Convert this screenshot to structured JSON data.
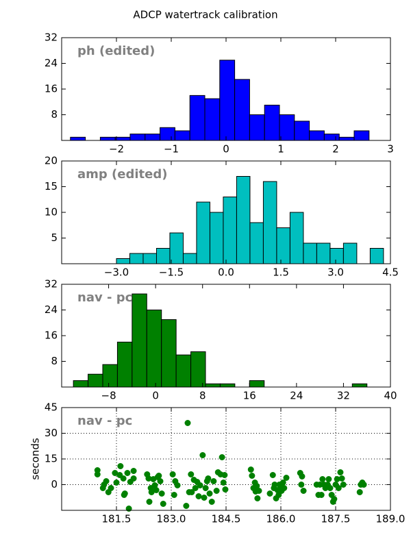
{
  "title": "ADCP watertrack calibration",
  "chart_data": [
    {
      "type": "histogram",
      "label": "ph (edited)",
      "color": "#0000ff",
      "bins": [
        -2.84,
        -2.5675,
        -2.295,
        -2.0225,
        -1.75,
        -1.4775,
        -1.205,
        -0.9325,
        -0.66,
        -0.3875,
        -0.115,
        0.1575,
        0.43,
        0.7025,
        0.975,
        1.2475,
        1.52,
        1.7925,
        2.065,
        2.3375,
        2.61
      ],
      "values": [
        1,
        0,
        1,
        1,
        2,
        2,
        4,
        3,
        14,
        13,
        25,
        19,
        8,
        11,
        8,
        6,
        3,
        2,
        1,
        3
      ],
      "xlim": [
        -3,
        3
      ],
      "xticks": [
        {
          "value": -2,
          "label": "−2"
        },
        {
          "value": -1,
          "label": "−1"
        },
        0,
        1,
        2,
        3
      ],
      "ylim": [
        0,
        32
      ],
      "yticks": [
        8,
        16,
        24,
        32
      ]
    },
    {
      "type": "histogram",
      "label": "amp (edited)",
      "color": "#00bfbf",
      "bins": [
        -3,
        -2.6345,
        -2.269,
        -1.9035,
        -1.538,
        -1.1725,
        -0.807,
        -0.4415,
        -0.076,
        0.2895,
        0.655,
        1.0205,
        1.386,
        1.7515,
        2.117,
        2.4825,
        2.848,
        3.2135,
        3.579,
        3.9445,
        4.31
      ],
      "values": [
        1,
        2,
        2,
        3,
        6,
        2,
        12,
        10,
        13,
        17,
        8,
        16,
        7,
        10,
        4,
        4,
        3,
        4,
        0,
        3
      ],
      "xlim": [
        -4.5,
        4.5
      ],
      "xticks": [
        {
          "value": -3,
          "label": "−3.0"
        },
        {
          "value": -1.5,
          "label": "−1.5"
        },
        {
          "value": 0,
          "label": "0.0"
        },
        1.5,
        {
          "value": 3,
          "label": "3.0"
        },
        4.5
      ],
      "ylim": [
        0,
        20
      ],
      "yticks": [
        5,
        10,
        15,
        20
      ]
    },
    {
      "type": "histogram",
      "label": "nav - pc",
      "color": "#008000",
      "bins": [
        -14,
        -11.5,
        -9,
        -6.5,
        -4,
        -1.5,
        1,
        3.5,
        6,
        8.5,
        11,
        13.5,
        16,
        18.5,
        21,
        23.5,
        26,
        28.5,
        31,
        33.5,
        36
      ],
      "values": [
        2,
        4,
        7,
        14,
        29,
        24,
        21,
        10,
        11,
        1,
        1,
        0,
        2,
        0,
        0,
        0,
        0,
        0,
        0,
        1
      ],
      "xlim": [
        -16,
        40
      ],
      "xticks": [
        {
          "value": -8,
          "label": "−8"
        },
        0,
        8,
        16,
        24,
        32,
        40
      ],
      "ylim": [
        0,
        32
      ],
      "yticks": [
        8,
        16,
        24,
        32
      ]
    },
    {
      "type": "scatter",
      "label": "nav - pc",
      "color": "#008000",
      "ylabel": "seconds",
      "grid": true,
      "x": [
        180.98,
        180.98,
        181.13,
        181.16,
        181.22,
        181.28,
        181.35,
        181.46,
        181.5,
        181.61,
        181.59,
        181.69,
        181.73,
        181.71,
        181.8,
        181.84,
        181.88,
        181.97,
        181.97,
        182.34,
        182.38,
        182.4,
        182.44,
        182.46,
        182.51,
        182.55,
        182.59,
        182.63,
        182.66,
        182.7,
        182.74,
        182.78,
        183.04,
        183.08,
        183.11,
        183.17,
        183.41,
        183.45,
        183.49,
        183.54,
        183.56,
        183.62,
        183.66,
        183.71,
        183.75,
        183.79,
        183.86,
        183.9,
        183.94,
        183.98,
        184.01,
        184.05,
        184.11,
        184.16,
        184.24,
        184.28,
        184.35,
        184.39,
        184.43,
        184.46,
        184.48,
        185.18,
        185.21,
        185.25,
        185.29,
        185.31,
        185.34,
        185.36,
        185.4,
        185.7,
        185.78,
        185.81,
        185.83,
        185.87,
        185.91,
        185.94,
        185.96,
        186.0,
        186.02,
        186.06,
        186.09,
        186.15,
        186.53,
        186.56,
        186.58,
        186.62,
        186.98,
        187.03,
        187.07,
        187.11,
        187.14,
        187.18,
        187.22,
        187.28,
        187.31,
        187.35,
        187.39,
        187.43,
        187.46,
        187.5,
        187.54,
        187.58,
        187.63,
        187.67,
        187.71,
        188.16,
        188.19,
        188.23,
        188.27
      ],
      "values": [
        8.4,
        6,
        -2,
        0,
        2,
        -4.4,
        -2,
        6.8,
        1.2,
        10.8,
        5.6,
        3.6,
        -5.2,
        -6,
        6.8,
        -14,
        1.6,
        8,
        3.6,
        6,
        3.6,
        -10,
        -2,
        -4.4,
        3.2,
        -0.4,
        -3.2,
        4.4,
        5.2,
        2,
        -5.2,
        -11.2,
        6,
        -6,
        2,
        -0.4,
        -12.4,
        36,
        -4.4,
        6,
        -4.4,
        2.8,
        -2,
        1.6,
        -6.8,
        -0.4,
        17.2,
        -7.6,
        -2,
        2,
        3.6,
        -5.2,
        -10,
        2,
        -3.6,
        7.2,
        6,
        16,
        1.2,
        5.6,
        -2.8,
        8.8,
        5.2,
        -2,
        1.2,
        -4,
        -0.8,
        -8,
        -3.6,
        -5.2,
        5.6,
        -2,
        0,
        -8,
        -3.2,
        -6,
        0,
        -1.2,
        -3.6,
        1.2,
        -2,
        4,
        6.8,
        0,
        4.8,
        -3.6,
        0,
        -6,
        0,
        -6,
        3.2,
        0,
        -2,
        0,
        3.2,
        -2,
        -6,
        -10,
        -8.4,
        0,
        3.2,
        -2,
        7.2,
        3.6,
        0,
        -4.4,
        0,
        1.2,
        0
      ],
      "xlim": [
        180,
        189
      ],
      "xticks": [
        181.5,
        {
          "value": 183,
          "label": "183.0"
        },
        184.5,
        {
          "value": 186,
          "label": "186.0"
        },
        187.5,
        {
          "value": 189,
          "label": "189.0"
        }
      ],
      "ylim": [
        -15,
        45
      ],
      "yticks": [
        0,
        15,
        30,
        45
      ]
    }
  ]
}
